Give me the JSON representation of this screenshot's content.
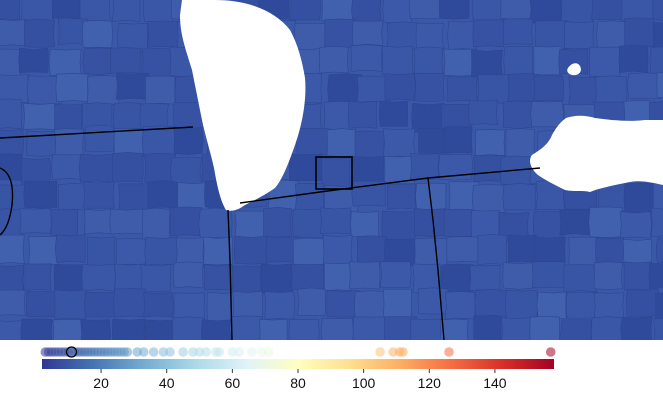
{
  "map": {
    "background_color": "#3b58a8",
    "county_shades": [
      "#3752a3",
      "#3a56a7",
      "#3c59a9",
      "#3f5cab",
      "#3550a0",
      "#4160ad",
      "#3855a5",
      "#2f4a9a"
    ],
    "county_border_color": "#2c4690",
    "water_color": "#ffffff",
    "state_line_color": "#000000",
    "water_bodies": [
      "lake-michigan",
      "lake-erie"
    ]
  },
  "legend": {
    "ticks": [
      "20",
      "40",
      "60",
      "80",
      "100",
      "120",
      "140"
    ],
    "tick_values": [
      20,
      40,
      60,
      80,
      100,
      120,
      140
    ],
    "domain": [
      2,
      158
    ],
    "colorscale": [
      "#313695",
      "#4575b4",
      "#74add1",
      "#abd9e9",
      "#e0f3f8",
      "#ffffbf",
      "#fee090",
      "#fdae61",
      "#f46d43",
      "#d73027",
      "#a50026"
    ],
    "marker_values": [
      3,
      4,
      5,
      6,
      7,
      8,
      9,
      10,
      11,
      12,
      13,
      14,
      15,
      16,
      17,
      18,
      19,
      20,
      21,
      22,
      23,
      24,
      25,
      26,
      27,
      28,
      31,
      33,
      36,
      39,
      41,
      45,
      48,
      50,
      52,
      55,
      56,
      60,
      62,
      66,
      69,
      71,
      105,
      109,
      111,
      112,
      126,
      157
    ],
    "highlighted_value": 11
  }
}
